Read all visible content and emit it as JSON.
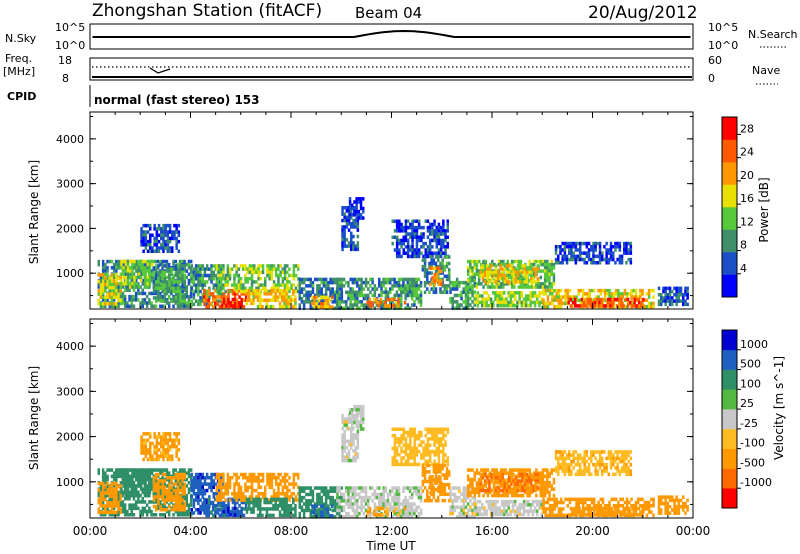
{
  "header": {
    "title": "Zhongshan Station (fitACF)",
    "beam": "Beam 04",
    "date": "20/Aug/2012"
  },
  "nsky_panel": {
    "left_label": "N.Sky",
    "left_tick_top": "10^5",
    "left_tick_bottom": "10^0",
    "right_label": "N.Search",
    "right_tick_top": "10^5",
    "right_tick_bottom": "10^0"
  },
  "freq_panel": {
    "left_label_line1": "Freq.",
    "left_label_line2": "[MHz]",
    "left_tick_top": "18",
    "left_tick_bottom": "8",
    "right_label": "Nave",
    "right_tick_top": "60",
    "right_tick_bottom": "0"
  },
  "cpid_panel": {
    "label": "CPID",
    "text": "normal (fast stereo) 153"
  },
  "x_axis": {
    "label": "Time UT",
    "ticks": [
      "00:00",
      "04:00",
      "08:00",
      "12:00",
      "16:00",
      "20:00",
      "00:00"
    ]
  },
  "colors": {
    "power_scale": [
      "#0000ff",
      "#1a4fc8",
      "#3f8f6b",
      "#55c83c",
      "#e8e000",
      "#ff9800",
      "#ff5a00",
      "#ff0000"
    ],
    "velocity_scale": [
      "#ff0000",
      "#ff6a00",
      "#ff9900",
      "#ffbb22",
      "#c8c8c8",
      "#55b842",
      "#2f8f66",
      "#1f5fbf",
      "#0000d0"
    ]
  },
  "chart_data": [
    {
      "type": "heatmap",
      "title": "",
      "xlabel": "Time UT",
      "ylabel": "Slant Range [km]",
      "x_ticks": [
        "00:00",
        "04:00",
        "08:00",
        "12:00",
        "16:00",
        "20:00",
        "00:00"
      ],
      "y_ticks": [
        "1000",
        "2000",
        "3000",
        "4000"
      ],
      "ylim": [
        200,
        4600
      ],
      "xlim_hours": [
        0,
        24
      ],
      "colorbar": {
        "label": "Power [dB]",
        "ticks": [
          "4",
          "8",
          "12",
          "16",
          "20",
          "24",
          "28"
        ],
        "range": [
          0,
          31
        ]
      },
      "regions": [
        {
          "t0": 0.3,
          "t1": 4.0,
          "r0": 250,
          "r1": 1300,
          "value": 9
        },
        {
          "t0": 0.3,
          "t1": 1.2,
          "r0": 300,
          "r1": 1000,
          "value": 17
        },
        {
          "t0": 1.2,
          "t1": 2.5,
          "r0": 700,
          "r1": 1300,
          "value": 14
        },
        {
          "t0": 2.5,
          "t1": 3.8,
          "r0": 400,
          "r1": 1200,
          "value": 11
        },
        {
          "t0": 2.0,
          "t1": 3.5,
          "r0": 1500,
          "r1": 2100,
          "value": 6
        },
        {
          "t0": 4.0,
          "t1": 5.3,
          "r0": 300,
          "r1": 1200,
          "value": 10
        },
        {
          "t0": 4.5,
          "t1": 6.2,
          "r0": 250,
          "r1": 650,
          "value": 24
        },
        {
          "t0": 5.2,
          "t1": 6.0,
          "r0": 250,
          "r1": 450,
          "value": 30
        },
        {
          "t0": 5.0,
          "t1": 8.3,
          "r0": 600,
          "r1": 1200,
          "value": 14
        },
        {
          "t0": 6.2,
          "t1": 8.2,
          "r0": 250,
          "r1": 650,
          "value": 19
        },
        {
          "t0": 8.3,
          "t1": 10.0,
          "r0": 250,
          "r1": 900,
          "value": 8
        },
        {
          "t0": 8.8,
          "t1": 9.6,
          "r0": 250,
          "r1": 500,
          "value": 20
        },
        {
          "t0": 10.0,
          "t1": 10.7,
          "r0": 1500,
          "r1": 2500,
          "value": 6
        },
        {
          "t0": 10.3,
          "t1": 10.9,
          "r0": 2200,
          "r1": 2700,
          "value": 4
        },
        {
          "t0": 9.8,
          "t1": 13.2,
          "r0": 250,
          "r1": 900,
          "value": 10
        },
        {
          "t0": 11.0,
          "t1": 12.5,
          "r0": 250,
          "r1": 450,
          "value": 23
        },
        {
          "t0": 12.0,
          "t1": 14.2,
          "r0": 1400,
          "r1": 2200,
          "value": 5
        },
        {
          "t0": 13.2,
          "t1": 14.3,
          "r0": 600,
          "r1": 1400,
          "value": 9
        },
        {
          "t0": 13.5,
          "t1": 14.0,
          "r0": 750,
          "r1": 1150,
          "value": 23
        },
        {
          "t0": 14.3,
          "t1": 15.3,
          "r0": 250,
          "r1": 900,
          "value": 11
        },
        {
          "t0": 15.0,
          "t1": 18.5,
          "r0": 700,
          "r1": 1300,
          "value": 13
        },
        {
          "t0": 15.5,
          "t1": 17.8,
          "r0": 800,
          "r1": 1200,
          "value": 18
        },
        {
          "t0": 15.3,
          "t1": 18.0,
          "r0": 250,
          "r1": 600,
          "value": 15
        },
        {
          "t0": 18.0,
          "t1": 22.4,
          "r0": 250,
          "r1": 650,
          "value": 18
        },
        {
          "t0": 19.0,
          "t1": 22.0,
          "r0": 250,
          "r1": 450,
          "value": 26
        },
        {
          "t0": 18.5,
          "t1": 21.5,
          "r0": 1200,
          "r1": 1700,
          "value": 5
        },
        {
          "t0": 22.6,
          "t1": 23.8,
          "r0": 300,
          "r1": 700,
          "value": 6
        }
      ]
    },
    {
      "type": "heatmap",
      "title": "",
      "xlabel": "Time UT",
      "ylabel": "Slant Range [km]",
      "x_ticks": [
        "00:00",
        "04:00",
        "08:00",
        "12:00",
        "16:00",
        "20:00",
        "00:00"
      ],
      "y_ticks": [
        "1000",
        "2000",
        "3000",
        "4000"
      ],
      "ylim": [
        200,
        4600
      ],
      "xlim_hours": [
        0,
        24
      ],
      "colorbar": {
        "label": "Velocity [m s^-1]",
        "ticks": [
          "1000",
          "500",
          "100",
          "25",
          "-25",
          "-100",
          "-500",
          "-1000"
        ]
      },
      "regions": [
        {
          "t0": 0.3,
          "t1": 4.0,
          "r0": 250,
          "r1": 1300,
          "value": 150
        },
        {
          "t0": 0.3,
          "t1": 1.2,
          "r0": 300,
          "r1": 1000,
          "value": -200
        },
        {
          "t0": 1.2,
          "t1": 2.5,
          "r0": 700,
          "r1": 1300,
          "value": 300
        },
        {
          "t0": 2.5,
          "t1": 3.8,
          "r0": 400,
          "r1": 1200,
          "value": -150
        },
        {
          "t0": 2.0,
          "t1": 3.5,
          "r0": 1500,
          "r1": 2100,
          "value": -120
        },
        {
          "t0": 4.0,
          "t1": 5.3,
          "r0": 300,
          "r1": 1200,
          "value": 800
        },
        {
          "t0": 4.5,
          "t1": 6.2,
          "r0": 250,
          "r1": 650,
          "value": 600
        },
        {
          "t0": 5.2,
          "t1": 6.0,
          "r0": 250,
          "r1": 450,
          "value": 900
        },
        {
          "t0": 5.0,
          "t1": 8.3,
          "r0": 600,
          "r1": 1200,
          "value": -180
        },
        {
          "t0": 6.2,
          "t1": 8.2,
          "r0": 250,
          "r1": 650,
          "value": 200
        },
        {
          "t0": 8.3,
          "t1": 10.0,
          "r0": 250,
          "r1": 900,
          "value": 250
        },
        {
          "t0": 8.8,
          "t1": 9.6,
          "r0": 250,
          "r1": 500,
          "value": 550
        },
        {
          "t0": 10.0,
          "t1": 10.7,
          "r0": 1500,
          "r1": 2500,
          "value": 0
        },
        {
          "t0": 10.3,
          "t1": 10.9,
          "r0": 2200,
          "r1": 2700,
          "value": 10
        },
        {
          "t0": 9.8,
          "t1": 13.2,
          "r0": 250,
          "r1": 900,
          "value": 5
        },
        {
          "t0": 11.0,
          "t1": 12.5,
          "r0": 250,
          "r1": 450,
          "value": -120
        },
        {
          "t0": 12.0,
          "t1": 14.2,
          "r0": 1400,
          "r1": 2200,
          "value": -60
        },
        {
          "t0": 13.2,
          "t1": 14.3,
          "r0": 600,
          "r1": 1400,
          "value": -200
        },
        {
          "t0": 13.5,
          "t1": 14.0,
          "r0": 750,
          "r1": 1150,
          "value": -300
        },
        {
          "t0": 14.3,
          "t1": 15.3,
          "r0": 250,
          "r1": 900,
          "value": 0
        },
        {
          "t0": 15.0,
          "t1": 18.5,
          "r0": 700,
          "r1": 1300,
          "value": -250
        },
        {
          "t0": 15.5,
          "t1": 17.8,
          "r0": 800,
          "r1": 1200,
          "value": -550
        },
        {
          "t0": 15.3,
          "t1": 18.0,
          "r0": 250,
          "r1": 600,
          "value": 0
        },
        {
          "t0": 18.0,
          "t1": 22.4,
          "r0": 250,
          "r1": 650,
          "value": -150
        },
        {
          "t0": 19.0,
          "t1": 22.0,
          "r0": 250,
          "r1": 450,
          "value": -300
        },
        {
          "t0": 18.5,
          "t1": 21.5,
          "r0": 1200,
          "r1": 1700,
          "value": -80
        },
        {
          "t0": 22.6,
          "t1": 23.8,
          "r0": 300,
          "r1": 700,
          "value": -150
        }
      ]
    }
  ]
}
